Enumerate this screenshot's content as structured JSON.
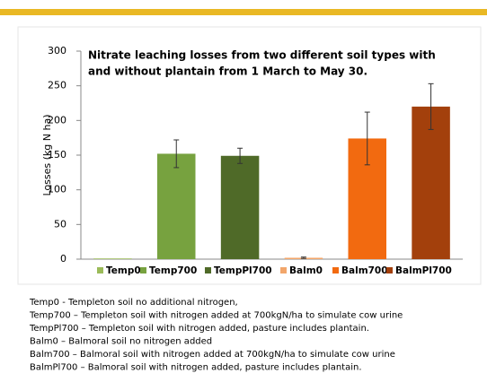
{
  "chart_data": {
    "type": "bar",
    "title": [
      "Nitrate leaching losses from two different soil types with",
      "and without plantain from 1 March to May 30."
    ],
    "y_label": "Losses (kg N ha)",
    "categories": [
      "Temp0",
      "Temp700",
      "TempPl700",
      "Balm0",
      "Balm700",
      "BalmPl700"
    ],
    "values": [
      1,
      152,
      149,
      2,
      174,
      220
    ],
    "errors": [
      0,
      20,
      11,
      1,
      38,
      33
    ],
    "colors": [
      "#9bbb59",
      "#77a23f",
      "#4f6a28",
      "#f2a66b",
      "#f26a10",
      "#a3400c"
    ],
    "ylim": [
      0,
      300
    ],
    "yticks": [
      0,
      50,
      100,
      150,
      200,
      250,
      300
    ],
    "legend": "bottom",
    "notes": [
      "Temp0 - Templeton soil no additional nitrogen,",
      "Temp700 – Templeton soil with nitrogen added at 700kgN/ha to simulate cow urine",
      "TempPl700 – Templeton soil with nitrogen added, pasture includes plantain.",
      "Balm0 – Balmoral soil no nitrogen added",
      "Balm700 – Balmoral soil with nitrogen added at 700kgN/ha to simulate cow urine",
      "BalmPl700 –  Balmoral soil with nitrogen added, pasture includes plantain."
    ]
  }
}
